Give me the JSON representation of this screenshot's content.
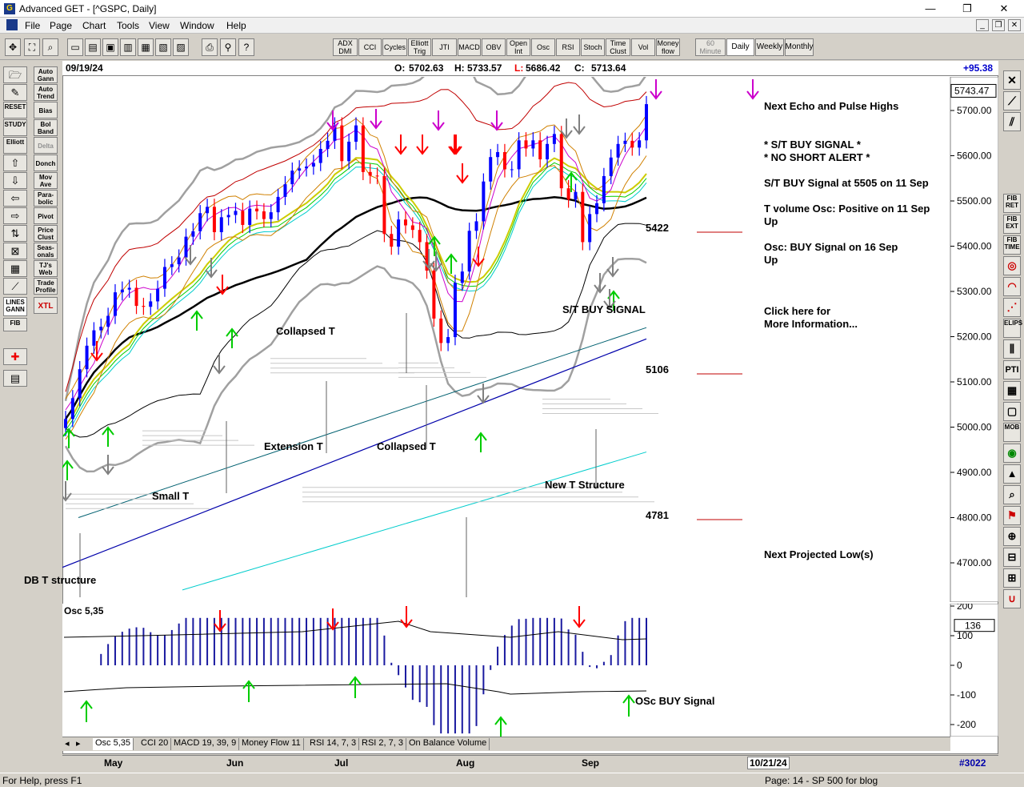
{
  "window": {
    "title": "Advanced GET - [^GSPC, Daily]",
    "minimize": "—",
    "restore": "❐",
    "close": "✕"
  },
  "menu": {
    "items": [
      "File",
      "Page",
      "Chart",
      "Tools",
      "View",
      "Window",
      "Help"
    ],
    "mdi_minimize": "_",
    "mdi_restore": "❐",
    "mdi_close": "✕"
  },
  "toolbar": {
    "indicator_buttons": [
      "ADX DMI",
      "CCI",
      "Cycles",
      "Elliott Trig",
      "JTI",
      "MACD",
      "OBV",
      "Open Int",
      "Osc",
      "RSI",
      "Stoch",
      "Time Clust",
      "Vol",
      "Money flow"
    ],
    "period_buttons": [
      "60 Minute",
      "Daily",
      "Weekly",
      "Monthly"
    ],
    "active_period": "Daily"
  },
  "left_tools": [
    "Auto Gann",
    "Auto Trend",
    "Bias",
    "Bol Band",
    "Delta",
    "Donch",
    "Mov Ave",
    "Para-bolic",
    "Pivot",
    "Price Clust",
    "Seas-onals",
    "TJ's Web",
    "Trade Profile",
    "XTL"
  ],
  "left_icons": [
    "RESET",
    "STUDY",
    "Elliott",
    "LINES GANN",
    "FIB"
  ],
  "right_tools": [
    "FIB RET",
    "FIB EXT",
    "FIB TIME",
    "ELIPS",
    "PTI",
    "MOB"
  ],
  "info": {
    "date": "09/19/24",
    "open_label": "O:",
    "open": "5702.63",
    "high_label": "H:",
    "high": "5733.57",
    "low_label": "L:",
    "low": "5686.42",
    "close_label": "C:",
    "close": "5713.64",
    "change": "+95.38"
  },
  "price_axis": {
    "current": "5743.47",
    "ticks": [
      "5700.00",
      "5600.00",
      "5500.00",
      "5400.00",
      "5300.00",
      "5200.00",
      "5100.00",
      "5000.00",
      "4900.00",
      "4800.00",
      "4700.00"
    ]
  },
  "annotations": {
    "small_t": "Small T",
    "extension_t": "Extension T",
    "collapsed_t_1": "Collapsed T",
    "collapsed_t_2": "Collapsed T",
    "new_t": "New T Structure",
    "db_t": "DB T structure",
    "st_buy": "S/T BUY SIGNAL",
    "osc_buy": "OSc BUY Signal",
    "level_5422": "5422",
    "level_5106": "5106",
    "level_4781": "4781"
  },
  "side_text": {
    "echo": "Next Echo and Pulse Highs",
    "buy_signal": "* S/T BUY SIGNAL *",
    "no_short": "* NO SHORT ALERT *",
    "st_buy_at": "S/T BUY Signal at 5505 on 11 Sep",
    "tvol": "T volume Osc: Positive on 11 Sep",
    "tvol_dir": "Up",
    "osc": "Osc: BUY Signal on 16 Sep",
    "osc_dir": "Up",
    "click": "Click here for",
    "more": "More Information...",
    "next_low": "Next Projected Low(s)"
  },
  "osc_panel": {
    "label": "Osc 5,35",
    "current": "136",
    "ticks": [
      "200",
      "100",
      "0",
      "-100",
      "-200"
    ]
  },
  "tabs": [
    "Osc 5,35",
    "CCI 20",
    "MACD 19, 39, 9",
    "Money Flow 11",
    "RSI 14, 7, 3",
    "RSI 2, 7, 3",
    "On Balance Volume"
  ],
  "months": [
    "May",
    "Jun",
    "Jul",
    "Aug",
    "Sep"
  ],
  "future_date": "10/21/24",
  "bar_count": "#3022",
  "status": {
    "help": "For Help, press F1",
    "page": "Page: 14 - SP 500 for blog"
  },
  "colors": {
    "up_bar": "#0000ff",
    "down_bar": "#ff0000",
    "green_arrow": "#00cc00",
    "red_arrow": "#ff0000",
    "magenta_arrow": "#cc00cc",
    "grey_arrow": "#808080"
  },
  "chart_data": {
    "type": "ohlc",
    "title": "^GSPC, Daily",
    "ylim": [
      4640,
      5800
    ],
    "x_categories": [
      "May",
      "Jun",
      "Jul",
      "Aug",
      "Sep"
    ],
    "close_series": [
      5018,
      5064,
      5128,
      5180,
      5214,
      5222,
      5246,
      5298,
      5304,
      5308,
      5268,
      5266,
      5278,
      5306,
      5354,
      5360,
      5375,
      5421,
      5433,
      5473,
      5487,
      5431,
      5464,
      5469,
      5478,
      5447,
      5483,
      5477,
      5460,
      5475,
      5509,
      5537,
      5567,
      5572,
      5576,
      5584,
      5615,
      5633,
      5667,
      5588,
      5631,
      5667,
      5564,
      5556,
      5555,
      5427,
      5399,
      5459,
      5446,
      5436,
      5409,
      5346,
      5240,
      5186,
      5199,
      5319,
      5344,
      5434,
      5455,
      5543,
      5597,
      5608,
      5570,
      5570,
      5634,
      5616,
      5634,
      5592,
      5626,
      5648,
      5528,
      5503,
      5520,
      5409,
      5471,
      5495,
      5555,
      5596,
      5626,
      5633,
      5618,
      5634,
      5714
    ],
    "oscillator": {
      "name": "Osc 5,35",
      "last": 136,
      "ylim": [
        -240,
        230
      ]
    }
  }
}
